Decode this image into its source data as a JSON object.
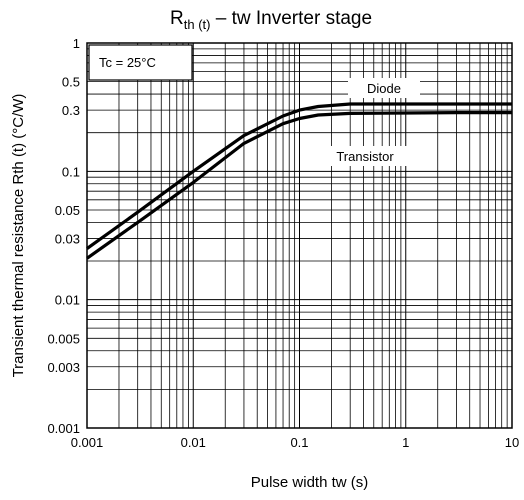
{
  "chart_data": {
    "type": "line",
    "title": {
      "main": "R",
      "sub": "th (t)",
      "rest": " – tw Inverter stage"
    },
    "xlabel": "Pulse width   tw    (s)",
    "ylabel": "Transient thermal resistance   Rth (t)   (°C/W)",
    "xscale": "log",
    "yscale": "log",
    "xlim": [
      0.001,
      10
    ],
    "ylim": [
      0.001,
      1
    ],
    "grid": true,
    "x_ticks": [
      "0.001",
      "0.01",
      "0.1",
      "1",
      "10"
    ],
    "y_ticks": [
      "1",
      "0.5",
      "0.3",
      "0.1",
      "0.05",
      "0.03",
      "0.01",
      "0.005",
      "0.003",
      "0.001"
    ],
    "annotation": "Tc = 25°C",
    "series": [
      {
        "name": "Diode",
        "x": [
          0.001,
          0.003,
          0.01,
          0.03,
          0.07,
          0.1,
          0.15,
          0.3,
          1,
          3,
          10
        ],
        "y": [
          0.025,
          0.048,
          0.1,
          0.19,
          0.27,
          0.3,
          0.32,
          0.335,
          0.335,
          0.335,
          0.335
        ]
      },
      {
        "name": "Transistor",
        "x": [
          0.001,
          0.003,
          0.01,
          0.03,
          0.07,
          0.1,
          0.15,
          0.3,
          1,
          3,
          10
        ],
        "y": [
          0.021,
          0.04,
          0.082,
          0.165,
          0.235,
          0.258,
          0.275,
          0.283,
          0.285,
          0.287,
          0.287
        ]
      }
    ]
  }
}
